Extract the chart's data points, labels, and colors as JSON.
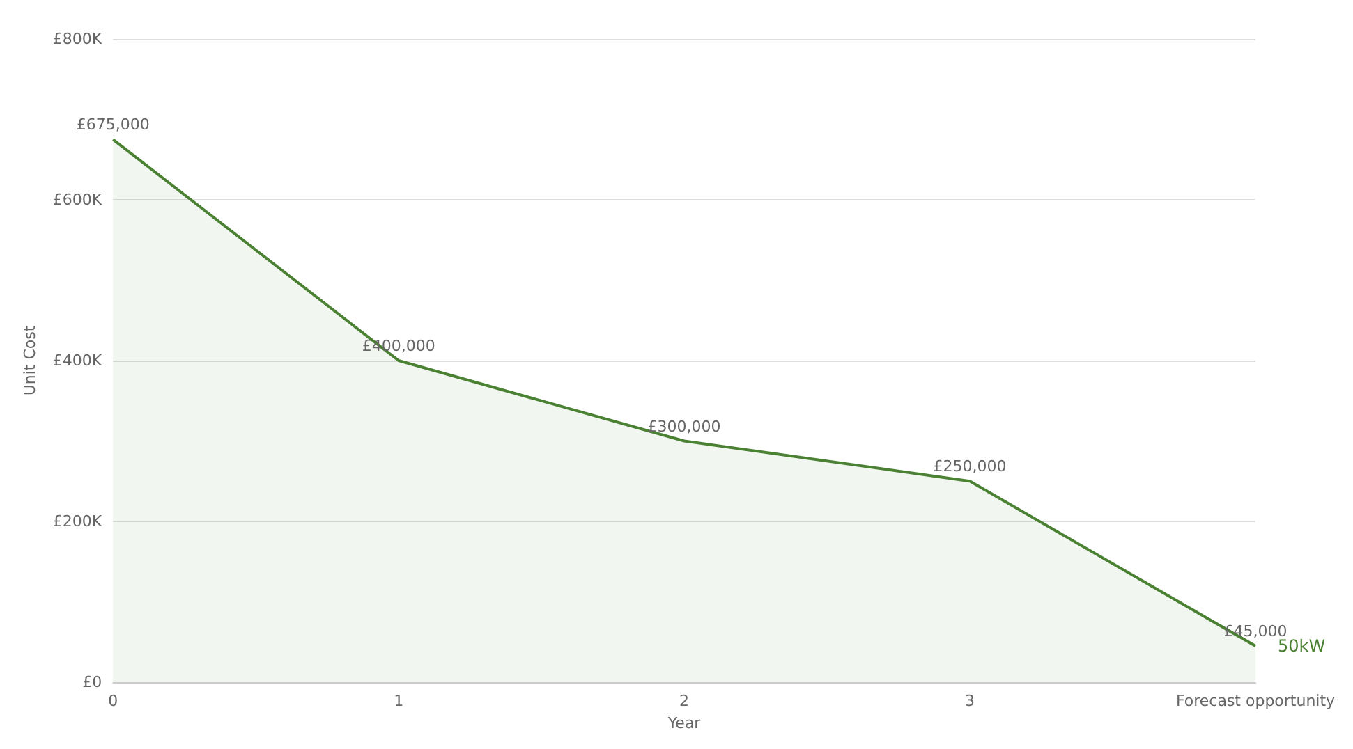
{
  "chart_data": {
    "type": "area",
    "xlabel": "Year",
    "ylabel": "Unit Cost",
    "categories": [
      "0",
      "1",
      "2",
      "3",
      "Forecast opportunity"
    ],
    "series": [
      {
        "name": "50kW",
        "color": "#4a8132",
        "values": [
          675000,
          400000,
          300000,
          250000,
          45000
        ],
        "value_labels": [
          "£675,000",
          "£400,000",
          "£300,000",
          "£250,000",
          "£45,000"
        ]
      }
    ],
    "ylim": [
      0,
      800000
    ],
    "yticks": [
      {
        "value": 0,
        "label": "£0"
      },
      {
        "value": 200000,
        "label": "£200K"
      },
      {
        "value": 400000,
        "label": "£400K"
      },
      {
        "value": 600000,
        "label": "£600K"
      },
      {
        "value": 800000,
        "label": "£800K"
      }
    ],
    "grid": "y",
    "legend": false
  }
}
